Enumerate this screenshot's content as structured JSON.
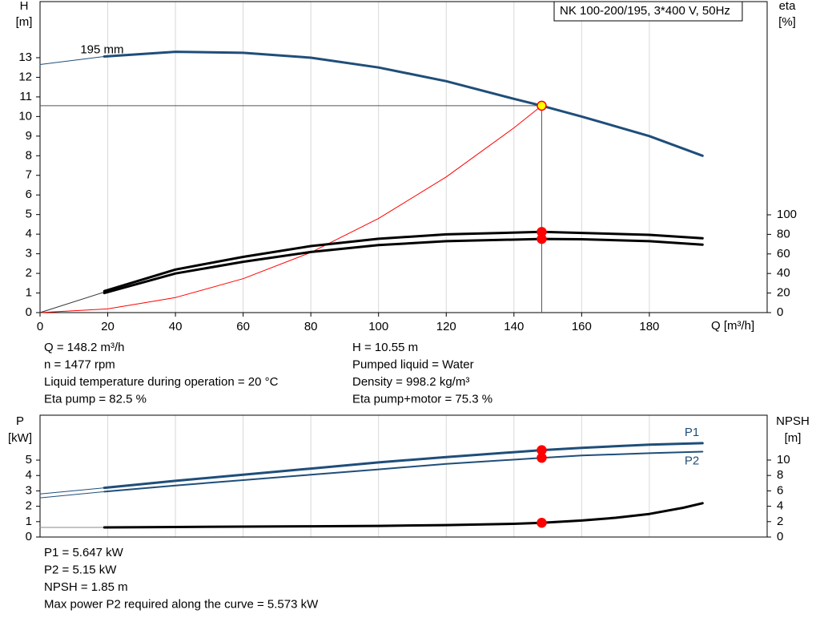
{
  "chart_data": [
    {
      "type": "line",
      "title": "NK 100-200/195, 3*400 V, 50Hz",
      "x_label": "Q [m³/h]",
      "y_label": "H",
      "y_unit": "[m]",
      "y2_label": "eta",
      "y2_unit": "[%]",
      "xlim": [
        0,
        214.8
      ],
      "xticks": [
        0,
        20,
        40,
        60,
        80,
        100,
        120,
        140,
        160,
        180
      ],
      "ylim": [
        0,
        15.86
      ],
      "yticks": [
        0,
        1,
        2,
        3,
        4,
        5,
        6,
        7,
        8,
        9,
        10,
        11,
        12,
        13
      ],
      "y2lim": [
        0,
        318
      ],
      "y2ticks": [
        0,
        20,
        40,
        60,
        80,
        100
      ],
      "grid": "x",
      "series": [
        {
          "color": "#1f4e79",
          "width": 1,
          "axis": "y",
          "x": [
            0,
            19
          ],
          "values": [
            12.65,
            13.06
          ]
        },
        {
          "name": "195 mm",
          "color": "#1f4e79",
          "width": 3,
          "axis": "y",
          "x": [
            19,
            40,
            60,
            80,
            100,
            120,
            140,
            148.2,
            160,
            180,
            195.7
          ],
          "values": [
            13.06,
            13.3,
            13.25,
            13.0,
            12.5,
            11.8,
            10.9,
            10.55,
            10.0,
            9.0,
            8.0
          ]
        },
        {
          "color": "#ff0000",
          "width": 1,
          "axis": "y",
          "x": [
            0,
            20,
            40,
            60,
            80,
            100,
            120,
            140,
            148.2
          ],
          "values": [
            0,
            0.19,
            0.77,
            1.73,
            3.07,
            4.8,
            6.92,
            9.42,
            10.55
          ]
        },
        {
          "color": "#333333",
          "width": 1,
          "axis": "y2",
          "x": [
            0,
            19
          ],
          "values": [
            0,
            21
          ]
        },
        {
          "color": "#000000",
          "width": 3,
          "axis": "y2",
          "x": [
            19,
            40,
            60,
            80,
            100,
            120,
            148.2,
            160,
            180,
            195.7
          ],
          "values": [
            22,
            44,
            57,
            68,
            75.5,
            80,
            82.5,
            81.5,
            79.5,
            76
          ]
        },
        {
          "color": "#000000",
          "width": 3,
          "axis": "y2",
          "x": [
            19,
            40,
            60,
            80,
            100,
            120,
            148.2,
            160,
            180,
            195.7
          ],
          "values": [
            20,
            40,
            52,
            62,
            69,
            73,
            75.3,
            75,
            73,
            69.5
          ]
        }
      ],
      "operating_point": {
        "x": 148.2,
        "crosshair": true,
        "points": [
          {
            "value": 10.55,
            "axis": "y",
            "color": "#ffff00"
          },
          {
            "value": 82.5,
            "axis": "y2",
            "color": "#ff0000"
          },
          {
            "value": 75.3,
            "axis": "y2",
            "color": "#ff0000"
          }
        ]
      },
      "info": [
        [
          "Q = 148.2 m³/h",
          "n = 1477 rpm",
          "Liquid temperature during operation = 20 °C",
          "Eta pump = 82.5 %"
        ],
        [
          "H = 10.55 m",
          "Pumped liquid = Water",
          "Density = 998.2 kg/m³",
          "Eta pump+motor = 75.3 %"
        ]
      ]
    },
    {
      "type": "line",
      "y_label": "P",
      "y_unit": "[kW]",
      "y2_label": "NPSH",
      "y2_unit": "[m]",
      "xlim": [
        0,
        214.8
      ],
      "xticks": [
        0,
        20,
        40,
        60,
        80,
        100,
        120,
        140,
        160,
        180
      ],
      "ylim": [
        0,
        7.92
      ],
      "yticks": [
        0,
        1,
        2,
        3,
        4,
        5
      ],
      "y2lim": [
        0,
        15.83
      ],
      "y2ticks": [
        0,
        2,
        4,
        6,
        8,
        10
      ],
      "grid": "x",
      "series": [
        {
          "color": "#1f4e79",
          "width": 1,
          "axis": "y",
          "x": [
            0,
            19
          ],
          "values": [
            2.8,
            3.2
          ]
        },
        {
          "name": "P1",
          "color": "#1f4e79",
          "width": 3,
          "axis": "y",
          "x": [
            19,
            40,
            60,
            80,
            100,
            120,
            148.2,
            160,
            180,
            195.7
          ],
          "values": [
            3.2,
            3.65,
            4.05,
            4.45,
            4.85,
            5.2,
            5.647,
            5.8,
            6.0,
            6.1
          ]
        },
        {
          "color": "#1f4e79",
          "width": 1,
          "axis": "y",
          "x": [
            0,
            19
          ],
          "values": [
            2.55,
            2.95
          ]
        },
        {
          "name": "P2",
          "color": "#1f4e79",
          "width": 2,
          "axis": "y",
          "x": [
            19,
            40,
            60,
            80,
            100,
            120,
            148.2,
            160,
            180,
            195.7
          ],
          "values": [
            2.95,
            3.35,
            3.7,
            4.05,
            4.4,
            4.75,
            5.15,
            5.3,
            5.45,
            5.55
          ]
        },
        {
          "color": "#888888",
          "width": 1,
          "axis": "y2",
          "x": [
            0,
            19
          ],
          "values": [
            1.25,
            1.25
          ]
        },
        {
          "color": "#000000",
          "width": 3,
          "axis": "y2",
          "x": [
            19,
            40,
            60,
            80,
            100,
            120,
            140,
            148.2,
            160,
            170,
            180,
            190,
            195.7
          ],
          "values": [
            1.25,
            1.3,
            1.35,
            1.4,
            1.45,
            1.55,
            1.72,
            1.85,
            2.15,
            2.5,
            3.0,
            3.8,
            4.4
          ]
        }
      ],
      "operating_point": {
        "x": 148.2,
        "crosshair": false,
        "points": [
          {
            "value": 5.647,
            "axis": "y",
            "color": "#ff0000"
          },
          {
            "value": 5.15,
            "axis": "y",
            "color": "#ff0000"
          },
          {
            "value": 1.85,
            "axis": "y2",
            "color": "#ff0000"
          }
        ]
      },
      "info": [
        [
          "P1 = 5.647 kW",
          "P2 = 5.15 kW",
          "NPSH = 1.85 m",
          "Max power P2 required along the curve = 5.573 kW"
        ]
      ]
    }
  ]
}
